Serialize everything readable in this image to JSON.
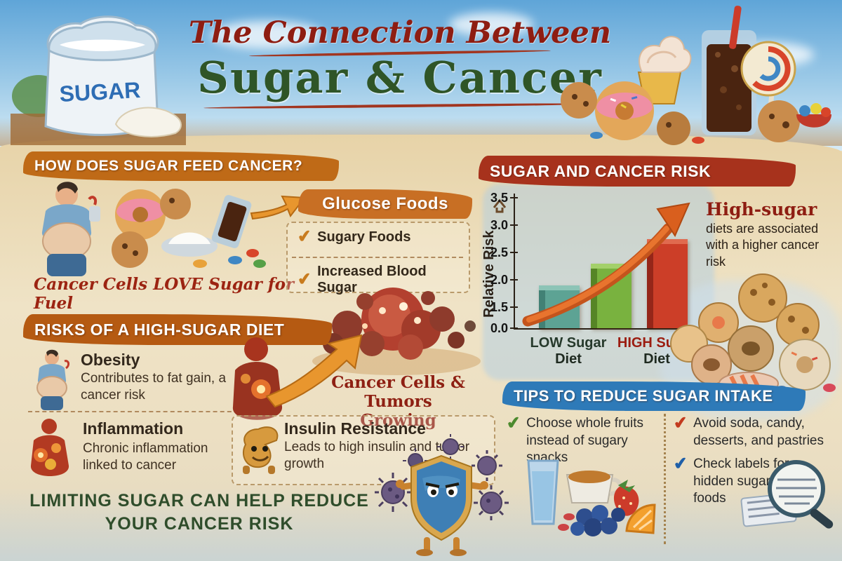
{
  "title": {
    "line1": "The Connection Between",
    "line2": "Sugar & Cancer"
  },
  "sugar_bag_label": "SUGAR",
  "icons": {
    "check": "✔"
  },
  "left_section": {
    "header": "HOW DOES SUGAR FEED CANCER?",
    "caption": "Cancer Cells LOVE Sugar for Fuel"
  },
  "glucose_box": {
    "header": "Glucose Foods",
    "items": [
      {
        "label": "Sugary Foods"
      },
      {
        "label": "Increased Blood Sugar"
      }
    ]
  },
  "tumor_caption": {
    "line1": "Cancer Cells & Tumors",
    "line2": "Growing"
  },
  "risks_section": {
    "header": "RISKS OF A HIGH-SUGAR DIET",
    "items": [
      {
        "title": "Obesity",
        "desc": "Contributes to fat gain, a cancer risk"
      },
      {
        "title": "Inflammation",
        "desc": "Chronic inflammation linked to cancer"
      },
      {
        "title": "Insulin Resistance",
        "desc": "Leads to high insulin and tumor growth"
      }
    ]
  },
  "bottom_message": {
    "line1": "LIMITING SUGAR CAN HELP REDUCE",
    "line2": "YOUR CANCER RISK"
  },
  "chart_data": {
    "type": "bar",
    "title": "SUGAR AND CANCER RISK",
    "ylabel": "Relative Risk",
    "ylim": [
      0,
      3.5
    ],
    "yticks": [
      {
        "value": 0.0,
        "label": "0.0"
      },
      {
        "value": 1.5,
        "label": "1.5"
      },
      {
        "value": 2.0,
        "label": "2.0"
      },
      {
        "value": 2.5,
        "label": "2.5"
      },
      {
        "value": 3.0,
        "label": "3.0"
      },
      {
        "value": 3.5,
        "label": "3.5"
      }
    ],
    "categories": [
      "LOW Sugar Diet",
      "",
      "HIGH Sugar Diet"
    ],
    "category_colors": [
      "#26392b",
      "",
      "#9b1c10"
    ],
    "values": [
      1.9,
      2.3,
      2.75
    ],
    "bar_colors": [
      "#5da394",
      "#79b23f",
      "#cc3e28"
    ],
    "bar_colors_dark": [
      "#3f7d71",
      "#527f24",
      "#8f2417"
    ],
    "bar_colors_light": [
      "#8cc4b6",
      "#a3d06a",
      "#e06a4f"
    ],
    "annotation": "rising orange arrow over bars",
    "grid": false,
    "legend": false
  },
  "risk_note": {
    "title": "High-sugar",
    "body": "diets are associated with a higher cancer risk"
  },
  "tips_section": {
    "header": "TIPS TO REDUCE SUGAR INTAKE",
    "tips": [
      {
        "text": "Choose whole fruits instead of sugary snacks",
        "check_color": "#4c8a2e"
      },
      {
        "text": "Avoid soda, candy, desserts, and pastries",
        "check_color": "#c33b1f"
      },
      {
        "text": "Check labels for hidden sugars in foods",
        "check_color": "#1f5fa8"
      }
    ]
  },
  "colors": {
    "header_orange": "#bf6a17",
    "header_red": "#a7321c",
    "header_blue": "#2e7ab8",
    "title_red": "#8e1d12",
    "title_green": "#2f5527",
    "caption_red": "#9c2412",
    "headline_green": "#2f4d2b"
  }
}
